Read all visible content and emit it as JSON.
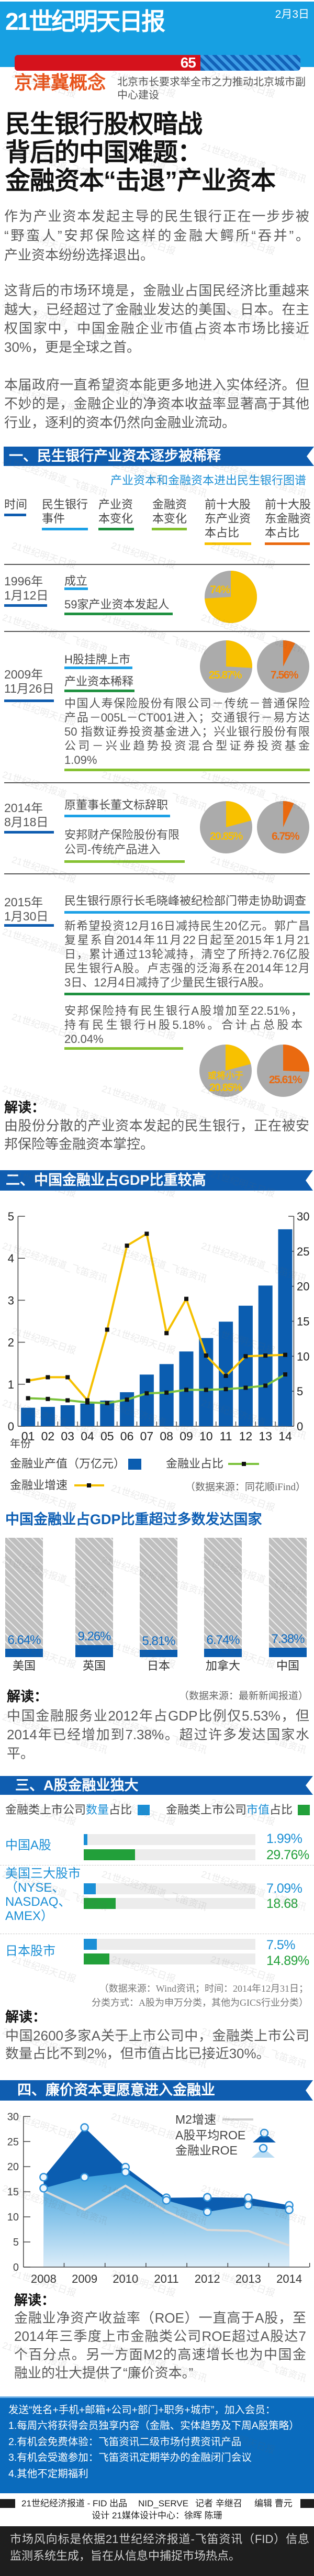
{
  "masthead": {
    "logo": "21世纪明天日报",
    "date": "2月3日",
    "bar_value": 65,
    "bar_label": "65",
    "concept_tag": "京津冀概念",
    "concept_headline": "北京市长要求举全市之力推动北京城市副中心建设"
  },
  "headline": {
    "lines": [
      "民生银行股权暗战",
      "背后的中国难题：",
      "金融资本“击退”产业资本"
    ]
  },
  "intro": {
    "p1": [
      "作为产业资本发起主导的民生银行正在一步步被",
      "“野蛮人”安邦保险这样的金融大鳄所“吞并”。",
      "产业资本纷纷选择退出。"
    ],
    "p2": [
      "这背后的市场环境是，金融业占国民经济比重越来",
      "越大，已经超过了金融业发达的美国、日本。在主",
      "权国家中，中国金融企业市值占资本市场比接近",
      "30%，更是全球之首。"
    ],
    "p3": [
      "本届政府一直希望资本能更多地进入实体经济。但",
      "不妙的是，金融企业的净资本收益率显著高于其他",
      "行业，逐利的资本仍然向金融业流动。"
    ]
  },
  "section1": {
    "title": "一、民生银行产业资本逐步被稀释",
    "subtitle": "产业资本和金融资本进出民生银行图谱",
    "columns": [
      {
        "lines": [
          "时间"
        ]
      },
      {
        "lines": [
          "民生银行",
          "事件"
        ]
      },
      {
        "lines": [
          "产业资",
          "本变化"
        ]
      },
      {
        "lines": [
          "金融资",
          "本变化"
        ]
      },
      {
        "lines": [
          "前十大股",
          "东产业资",
          "本占比"
        ]
      },
      {
        "lines": [
          "前十大股",
          "东金融资",
          "本占比"
        ]
      }
    ],
    "rows": [
      {
        "date": [
          "1996年",
          "1月12日"
        ],
        "event": "成立",
        "industrial": [
          "59家产业资本发起人"
        ],
        "financial": []
      },
      {
        "date": [
          "2009年",
          "11月26日"
        ],
        "event": "H股挂牌上市",
        "industrial": [
          "产业资本稀释"
        ],
        "financial": [
          "中国人寿保险股份有限公司－传统－普通保险",
          "产品－005L－CT001进入；交通银行－易方达",
          "50 指数证券投资基金进入；兴业银行股份有限",
          "公司－兴业趋势投资混合型证券投资基金",
          "1.09%"
        ]
      },
      {
        "date": [
          "2014年",
          "8月18日"
        ],
        "event": "原董事长董文标辞职",
        "industrial": [],
        "financial": [
          "安邦财产保险股份有限",
          "公司-传统产品进入"
        ]
      },
      {
        "date": [
          "2015年",
          "1月30日"
        ],
        "event": "民生银行原行长毛晓峰被纪检部门带走协助调查",
        "industrial": [
          "新希望投资12月16日减持民生20亿元。郭广昌",
          "复星系自2014年11月22日起至2015年1月21",
          "日，累计通过13轮减持，清空了所持2.76亿股",
          "民生银行A股。卢志强的泛海系在2014年12月",
          "3日、12月4日减持了少量民生银行A股。"
        ],
        "financial": [
          "安邦保险持有民生银行A股增加至22.51%，",
          "持有民生银行H股5.18%。合计占总股本",
          "20.04%"
        ]
      }
    ],
    "reading_label": "解读：",
    "reading": [
      "由股份分散的产业资本发起的民生银行，正在被安",
      "邦保险等金融资本掌控。"
    ]
  },
  "section2": {
    "title": "二、中国金融业占GDP比重较高",
    "reading_label": "解读：",
    "reading": [
      "中国金融服务业2012年占GDP比例仅5.53%，但",
      "2014年已经增加到7.38%。超过许多发达国家水",
      "平。"
    ]
  },
  "section3": {
    "title": "三、A股金融业独大",
    "reading_label": "解读：",
    "reading": [
      "中国2600多家A关于上市公司中，金融类上市公司",
      "数量占比不到2%，但市值占比已接近30%。"
    ]
  },
  "section4": {
    "title": "四、廉价资本更愿意进入金融业",
    "reading_label": "解读：",
    "reading": [
      "金融业净资产收益率（ROE）一直高于A股，至",
      "2014年三季度上市金融类公司ROE超过A股达7",
      "个百分点。另一方面M2的高速增长也为中国金",
      "融业的壮大提供了“廉价资本。”"
    ]
  },
  "membership": {
    "lines": [
      "发送“姓名+手机+邮箱+公司+部门+职务+城市”，加入会员：",
      "1.每周六将获得会员独享内容（金融、实体趋势及下周A股策略）",
      "2.有机会免费体验：飞笛资讯二级市场付费资讯产品",
      "3.有机会受邀参加：飞笛资讯定期举办的金融闭门会议",
      "4.其他不定期福利"
    ]
  },
  "credits": {
    "producer": "21世纪经济报道 - FID 出品",
    "code": "NID_SERVE",
    "reporter": "记者 辛继召",
    "editor": "编辑 曹元",
    "design": "设计 21媒体设计中心：徐晖  陈珊"
  },
  "disclaimer": {
    "lines": [
      "市场风向标是依据21世纪经济报道-飞笛资讯（FID）信息",
      "监测系统生成，旨在从信息中捕捉市场热点。"
    ]
  },
  "watermark_texts": [
    "21世纪明天日报",
    "21世纪经济报道_飞笛资讯"
  ],
  "colors": {
    "brand_blue": "#17a0e2",
    "section_blue": "#0f5db0",
    "industrial": "#f8c100",
    "financial": "#ea6a10",
    "pie_rest": "#ababab"
  },
  "chart_data": [
    {
      "type": "pie",
      "rows": [
        {
          "industrial": {
            "value": 74,
            "label": [
              "74%"
            ]
          },
          "financial": null
        },
        {
          "industrial": {
            "value": 25.87,
            "label": [
              "25.87%"
            ]
          },
          "financial": {
            "value": 7.56,
            "label": [
              "7.56%"
            ]
          }
        },
        {
          "industrial": {
            "value": 20.85,
            "label": [
              "20.85%"
            ]
          },
          "financial": {
            "value": 6.75,
            "label": [
              "6.75%"
            ]
          }
        },
        {
          "industrial": {
            "value": 20.85,
            "label": [
              "或将小于",
              "20.85%"
            ]
          },
          "financial": {
            "value": 25.61,
            "label": [
              "25.61%"
            ]
          }
        }
      ]
    },
    {
      "type": "bar",
      "xlabel": "年份",
      "categories": [
        "01",
        "02",
        "03",
        "04",
        "05",
        "06",
        "07",
        "08",
        "09",
        "10",
        "11",
        "12",
        "13",
        "14"
      ],
      "ylim_left": [
        0,
        5
      ],
      "yticks_left": [
        0,
        1,
        2,
        3,
        4,
        5
      ],
      "ylim_right": [
        0,
        30
      ],
      "yticks_right": [
        0,
        5,
        10,
        15,
        20,
        25,
        30
      ],
      "series": [
        {
          "name": "金融业产值（万亿元）",
          "type": "bar",
          "color": "#0b5db0",
          "values": [
            0.44,
            0.46,
            0.5,
            0.54,
            0.61,
            0.81,
            1.23,
            1.48,
            1.78,
            2.1,
            2.49,
            2.87,
            3.35,
            4.69
          ]
        },
        {
          "name": "金融业占比",
          "type": "line",
          "color": "#7cc23c",
          "values": [
            4.0,
            3.9,
            3.7,
            3.4,
            3.3,
            3.8,
            4.7,
            4.8,
            5.2,
            5.2,
            5.3,
            5.5,
            5.8,
            7.4
          ]
        },
        {
          "name": "金融业增速",
          "type": "line",
          "color": "#f5c000",
          "values": [
            6.5,
            7.0,
            7.0,
            3.7,
            13.8,
            25.8,
            27.5,
            13.3,
            18.2,
            10.1,
            7.2,
            10.0,
            10.1,
            10.2
          ]
        }
      ],
      "source": "（数据来源：同花顺iFind）"
    },
    {
      "type": "bar",
      "title": "中国金融业占GDP比重超过多数发达国家",
      "categories": [
        "美国",
        "英国",
        "日本",
        "加拿大",
        "中国"
      ],
      "values": [
        6.64,
        9.26,
        5.81,
        6.74,
        7.38
      ],
      "value_labels": [
        "6.64%",
        "9.26%",
        "5.81%",
        "6.74%",
        "7.38%"
      ],
      "source": "（数据来源：最新新闻报道）"
    },
    {
      "type": "bar",
      "xlim": [
        0,
        100
      ],
      "categories": [
        {
          "lines": [
            "中国A股"
          ]
        },
        {
          "lines": [
            "美国三大股市",
            "（NYSE、",
            "NASDAQ、",
            "AMEX）"
          ]
        },
        {
          "lines": [
            "日本股市"
          ]
        }
      ],
      "series": [
        {
          "legend": {
            "prefix": "金融类上市公司",
            "highlight": "数量",
            "suffix": "占比"
          },
          "color": "#1a8fd6",
          "values": [
            1.99,
            7.09,
            7.5
          ],
          "value_labels": [
            "1.99%",
            "7.09%",
            "7.5%"
          ]
        },
        {
          "legend": {
            "prefix": "金融类上市公司",
            "highlight": "市值",
            "suffix": "占比"
          },
          "color": "#22a03a",
          "values": [
            29.76,
            18.68,
            14.89
          ],
          "value_labels": [
            "29.76%",
            "18.68",
            "14.89%"
          ]
        }
      ],
      "source": [
        "（数据来源：Wind资讯；时间：2014年12月31日；",
        "分类方式：A股为申万分类，其他为GICS行业分类）"
      ]
    },
    {
      "type": "area",
      "x": [
        "2008",
        "2009",
        "2010",
        "2011",
        "2012",
        "2013",
        "2014"
      ],
      "ylim": [
        0,
        30
      ],
      "yticks": [
        0,
        5,
        10,
        15,
        20,
        25,
        30
      ],
      "series": [
        {
          "name": "M2增速",
          "type": "line",
          "color": "#d9d9d9",
          "values": [
            15.2,
            11.4,
            16.2,
            11.1,
            7.4,
            7.2,
            4.3
          ]
        },
        {
          "name": "A股平均ROE",
          "type": "area",
          "color": "#0b5db0",
          "values": [
            17.9,
            27.8,
            19.9,
            13.8,
            13.9,
            13.8,
            12.3
          ]
        },
        {
          "name": "金融业ROE",
          "type": "area",
          "color": "#3a9fdc",
          "values": [
            15.7,
            17.9,
            18.9,
            13.3,
            11.0,
            12.3,
            11.4
          ]
        }
      ]
    }
  ]
}
